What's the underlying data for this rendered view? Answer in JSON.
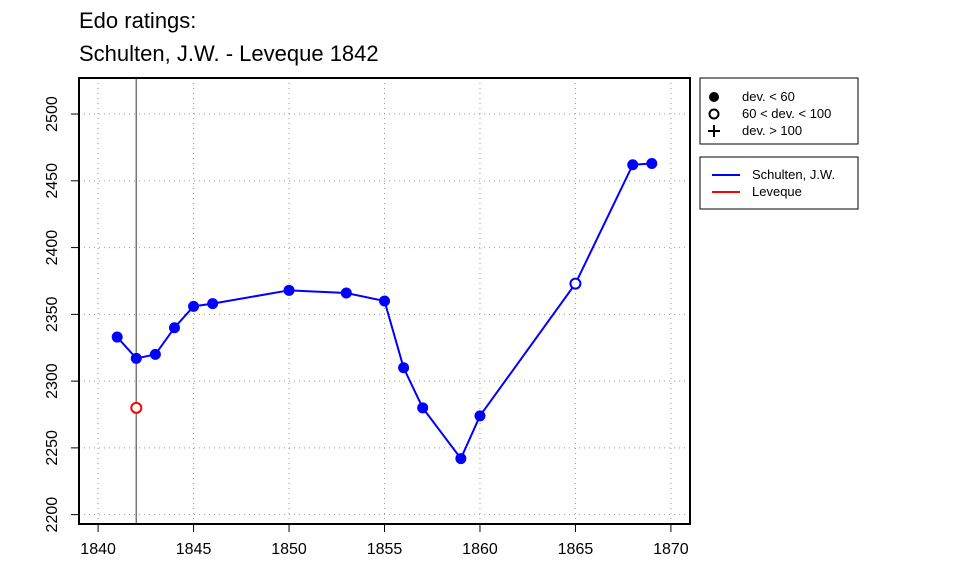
{
  "chart_data": {
    "type": "line",
    "title": [
      "Edo ratings:",
      "Schulten, J.W. - Leveque 1842"
    ],
    "xlim": [
      1839,
      1871
    ],
    "ylim": [
      2193,
      2527
    ],
    "xticks": [
      1840,
      1845,
      1850,
      1855,
      1860,
      1865,
      1870
    ],
    "yticks": [
      2200,
      2250,
      2300,
      2350,
      2400,
      2450,
      2500
    ],
    "grid": true,
    "marker_line_x": 1842,
    "marker_legend": [
      "dev. < 60",
      "60 < dev. < 100",
      "dev. > 100"
    ],
    "legend_placement": "right",
    "series": [
      {
        "name": "Schulten, J.W.",
        "color": "#0000ff",
        "x": [
          1841,
          1842,
          1843,
          1844,
          1845,
          1846,
          1850,
          1853,
          1855,
          1856,
          1857,
          1859,
          1860,
          1865,
          1868,
          1869
        ],
        "y": [
          2333,
          2317,
          2320,
          2340,
          2356,
          2358,
          2368,
          2366,
          2360,
          2310,
          2280,
          2242,
          2274,
          2373,
          2462,
          2463
        ],
        "marker": [
          "filled",
          "filled",
          "filled",
          "filled",
          "filled",
          "filled",
          "filled",
          "filled",
          "filled",
          "filled",
          "filled",
          "filled",
          "filled",
          "open",
          "filled",
          "filled"
        ]
      },
      {
        "name": "Leveque",
        "color": "#ff0000",
        "x": [
          1842
        ],
        "y": [
          2280
        ],
        "marker": [
          "open"
        ]
      }
    ]
  }
}
